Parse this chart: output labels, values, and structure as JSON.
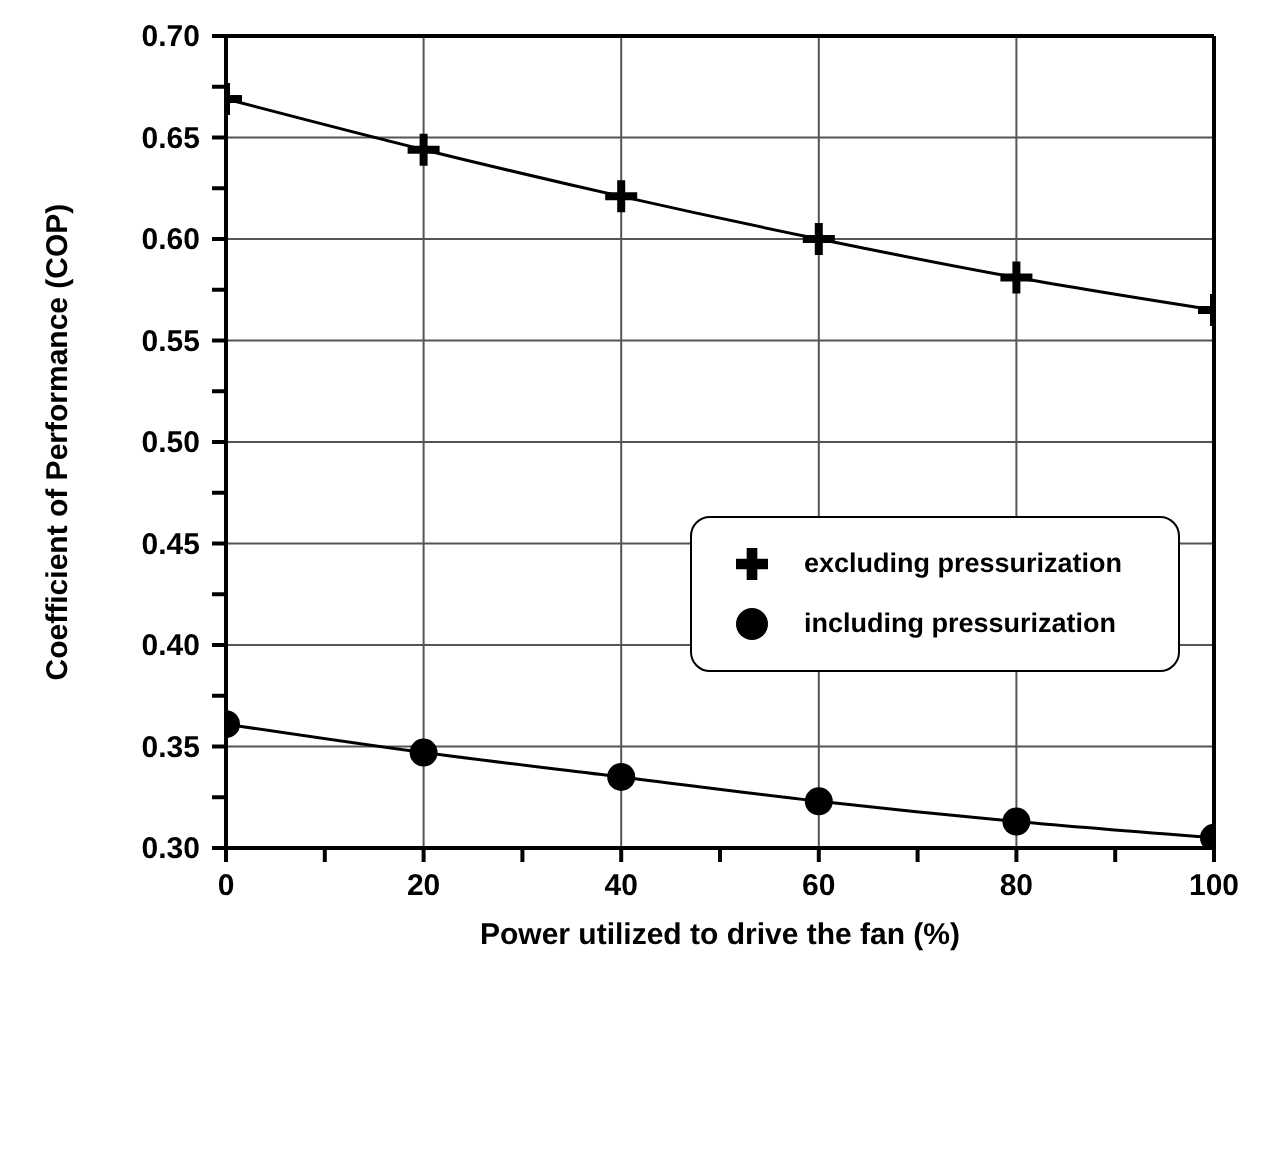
{
  "chart_data": {
    "type": "line",
    "xlabel": "Power utilized to drive the fan (%)",
    "ylabel": "Coefficient of Performance (COP)",
    "x": [
      0,
      20,
      40,
      60,
      80,
      100
    ],
    "series": [
      {
        "name": "excluding pressurization",
        "color": "#000000",
        "marker": "cross",
        "values": [
          0.669,
          0.644,
          0.621,
          0.6,
          0.581,
          0.565
        ]
      },
      {
        "name": "including pressurization",
        "color": "#000000",
        "marker": "circle",
        "values": [
          0.361,
          0.347,
          0.335,
          0.323,
          0.313,
          0.305
        ]
      }
    ],
    "xlim": [
      0,
      100
    ],
    "xticks": [
      0,
      {
        "value": 10,
        "label": null
      },
      20,
      {
        "value": 30,
        "label": null
      },
      40,
      {
        "value": 50,
        "label": null
      },
      60,
      {
        "value": 70,
        "label": null
      },
      80,
      {
        "value": 90,
        "label": null
      },
      100
    ],
    "ylim": [
      0.3,
      0.7
    ],
    "yticks": [
      {
        "value": 0.3,
        "label": "0.30"
      },
      {
        "value": 0.325,
        "label": null
      },
      {
        "value": 0.35,
        "label": "0.35"
      },
      {
        "value": 0.375,
        "label": null
      },
      {
        "value": 0.4,
        "label": "0.40"
      },
      {
        "value": 0.425,
        "label": null
      },
      {
        "value": 0.45,
        "label": "0.45"
      },
      {
        "value": 0.475,
        "label": null
      },
      {
        "value": 0.5,
        "label": "0.50"
      },
      {
        "value": 0.525,
        "label": null
      },
      {
        "value": 0.55,
        "label": "0.55"
      },
      {
        "value": 0.575,
        "label": null
      },
      {
        "value": 0.6,
        "label": "0.60"
      },
      {
        "value": 0.625,
        "label": null
      },
      {
        "value": 0.65,
        "label": "0.65"
      },
      {
        "value": 0.675,
        "label": null
      },
      {
        "value": 0.7,
        "label": "0.70"
      }
    ],
    "grid": true,
    "legend": "center right",
    "line_style": "solid"
  }
}
